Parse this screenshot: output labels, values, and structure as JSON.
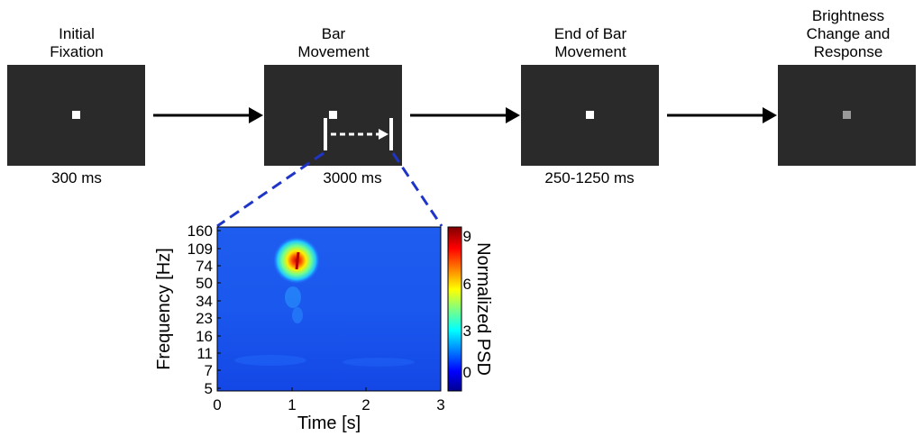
{
  "stages": [
    {
      "title_lines": [
        "Initial",
        "Fixation"
      ],
      "duration": "300 ms"
    },
    {
      "title_lines": [
        "Bar",
        "Movement"
      ],
      "duration": "3000 ms"
    },
    {
      "title_lines": [
        "End of Bar",
        "Movement"
      ],
      "duration": "250-1250 ms"
    },
    {
      "title_lines": [
        "Brightness",
        "Change and",
        "Response"
      ],
      "duration": ""
    }
  ],
  "colors": {
    "screen": "#2a2a2a",
    "fixation": "#ffffff",
    "fixation_dimmed": "#9a9a9a",
    "zoom_lines": "#1f35c8"
  },
  "spectrogram": {
    "ylabel": "Frequency [Hz]",
    "xlabel": "Time [s]",
    "y_ticks": [
      "160",
      "109",
      "74",
      "50",
      "34",
      "23",
      "16",
      "11",
      "7",
      "5"
    ],
    "x_ticks": [
      "0",
      "1",
      "2",
      "3"
    ],
    "colorbar_label": "Normalized PSD",
    "colorbar_ticks": [
      "9",
      "6",
      "3",
      "0"
    ],
    "colorbar_range": [
      -1,
      9
    ],
    "colormap": "jet"
  }
}
